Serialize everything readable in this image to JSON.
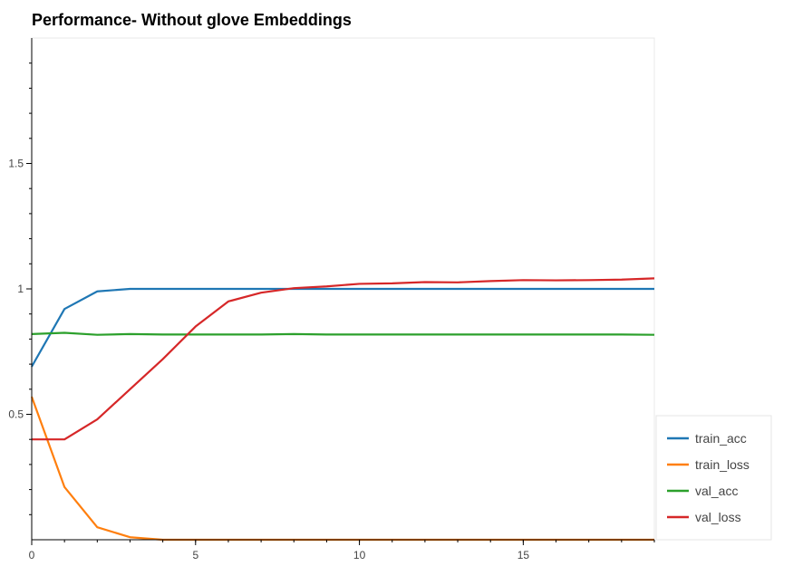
{
  "chart_data": {
    "type": "line",
    "title": "Performance- Without glove Embeddings",
    "xlabel": "",
    "ylabel": "",
    "xlim": [
      0,
      19
    ],
    "ylim": [
      0,
      2
    ],
    "x": [
      0,
      1,
      2,
      3,
      4,
      5,
      6,
      7,
      8,
      9,
      10,
      11,
      12,
      13,
      14,
      15,
      16,
      17,
      18,
      19
    ],
    "x_ticks": [
      0,
      5,
      10,
      15
    ],
    "x_tick_labels": [
      "0",
      "5",
      "10",
      "15"
    ],
    "y_ticks": [
      0.5,
      1,
      1.5
    ],
    "y_tick_labels": [
      "0.5",
      "1",
      "1.5"
    ],
    "grid": false,
    "legend_position": "bottom-right",
    "series": [
      {
        "name": "train_acc",
        "color": "#1f77b4",
        "values": [
          0.69,
          0.92,
          0.99,
          1.0,
          1.0,
          1.0,
          1.0,
          1.0,
          1.0,
          1.0,
          1.0,
          1.0,
          1.0,
          1.0,
          1.0,
          1.0,
          1.0,
          1.0,
          1.0,
          1.0
        ]
      },
      {
        "name": "train_loss",
        "color": "#ff7f0e",
        "values": [
          0.57,
          0.21,
          0.05,
          0.01,
          0.0,
          0.0,
          0.0,
          0.0,
          0.0,
          0.0,
          0.0,
          0.0,
          0.0,
          0.0,
          0.0,
          0.0,
          0.0,
          0.0,
          0.0,
          0.0
        ]
      },
      {
        "name": "val_acc",
        "color": "#2ca02c",
        "values": [
          0.82,
          0.825,
          0.817,
          0.82,
          0.818,
          0.818,
          0.818,
          0.818,
          0.82,
          0.818,
          0.818,
          0.818,
          0.818,
          0.818,
          0.818,
          0.818,
          0.818,
          0.818,
          0.818,
          0.817
        ]
      },
      {
        "name": "val_loss",
        "color": "#d62728",
        "values": [
          0.4,
          0.4,
          0.48,
          0.6,
          0.72,
          0.85,
          0.95,
          0.985,
          1.003,
          1.01,
          1.02,
          1.022,
          1.027,
          1.026,
          1.031,
          1.035,
          1.034,
          1.035,
          1.037,
          1.042
        ]
      }
    ]
  }
}
